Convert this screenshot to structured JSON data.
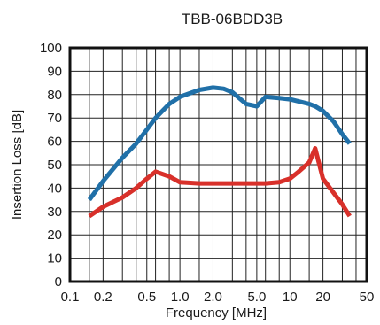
{
  "chart_data": {
    "type": "line",
    "title": "TBB-06BDD3B",
    "xlabel": "Frequency [MHz]",
    "ylabel": "Insertion Loss [dB]",
    "x_scale": "log",
    "xlim": [
      0.1,
      50
    ],
    "ylim": [
      0,
      100
    ],
    "x_tick_values": [
      0.1,
      0.2,
      0.5,
      1.0,
      2.0,
      5.0,
      10,
      20,
      50
    ],
    "x_tick_labels": [
      "0.1",
      "0.2",
      "0.5",
      "1.0",
      "2.0",
      "5.0",
      "10",
      "20",
      "50"
    ],
    "x_grid_values": [
      0.15,
      0.2,
      0.3,
      0.4,
      0.5,
      0.6,
      0.8,
      1.0,
      1.5,
      2.0,
      3.0,
      4.0,
      5.0,
      6.0,
      8.0,
      10,
      15,
      20,
      30,
      40
    ],
    "y_tick_values": [
      0,
      10,
      20,
      30,
      40,
      50,
      60,
      70,
      80,
      90,
      100
    ],
    "y_tick_labels": [
      "0",
      "10",
      "20",
      "30",
      "40",
      "50",
      "60",
      "70",
      "80",
      "90",
      "100"
    ],
    "grid": true,
    "legend": "none",
    "colors": {
      "series_1": "#2070a8",
      "series_2": "#d8302a",
      "axis": "#111111"
    },
    "series": [
      {
        "color": "#2070a8",
        "x": [
          0.15,
          0.2,
          0.3,
          0.4,
          0.5,
          0.6,
          0.8,
          1.0,
          1.5,
          2.0,
          2.5,
          3.0,
          4.0,
          5.0,
          6.0,
          8.0,
          10,
          15,
          17,
          20,
          25,
          30,
          35
        ],
        "y": [
          35,
          43,
          53,
          59,
          65,
          70,
          76,
          79,
          82,
          83,
          82.5,
          81,
          76,
          75,
          79,
          78.5,
          78,
          76,
          75,
          73,
          68.5,
          63,
          59
        ]
      },
      {
        "color": "#d8302a",
        "x": [
          0.15,
          0.2,
          0.3,
          0.4,
          0.5,
          0.6,
          0.8,
          1.0,
          1.5,
          2.0,
          3.0,
          5.0,
          6.0,
          8.0,
          10,
          12,
          15,
          17,
          20,
          25,
          30,
          35
        ],
        "y": [
          28,
          32,
          36,
          40,
          44,
          47,
          45,
          42.5,
          42,
          42,
          42,
          42,
          42,
          42.5,
          44,
          47,
          51,
          57,
          44,
          38,
          33,
          28
        ]
      }
    ]
  }
}
